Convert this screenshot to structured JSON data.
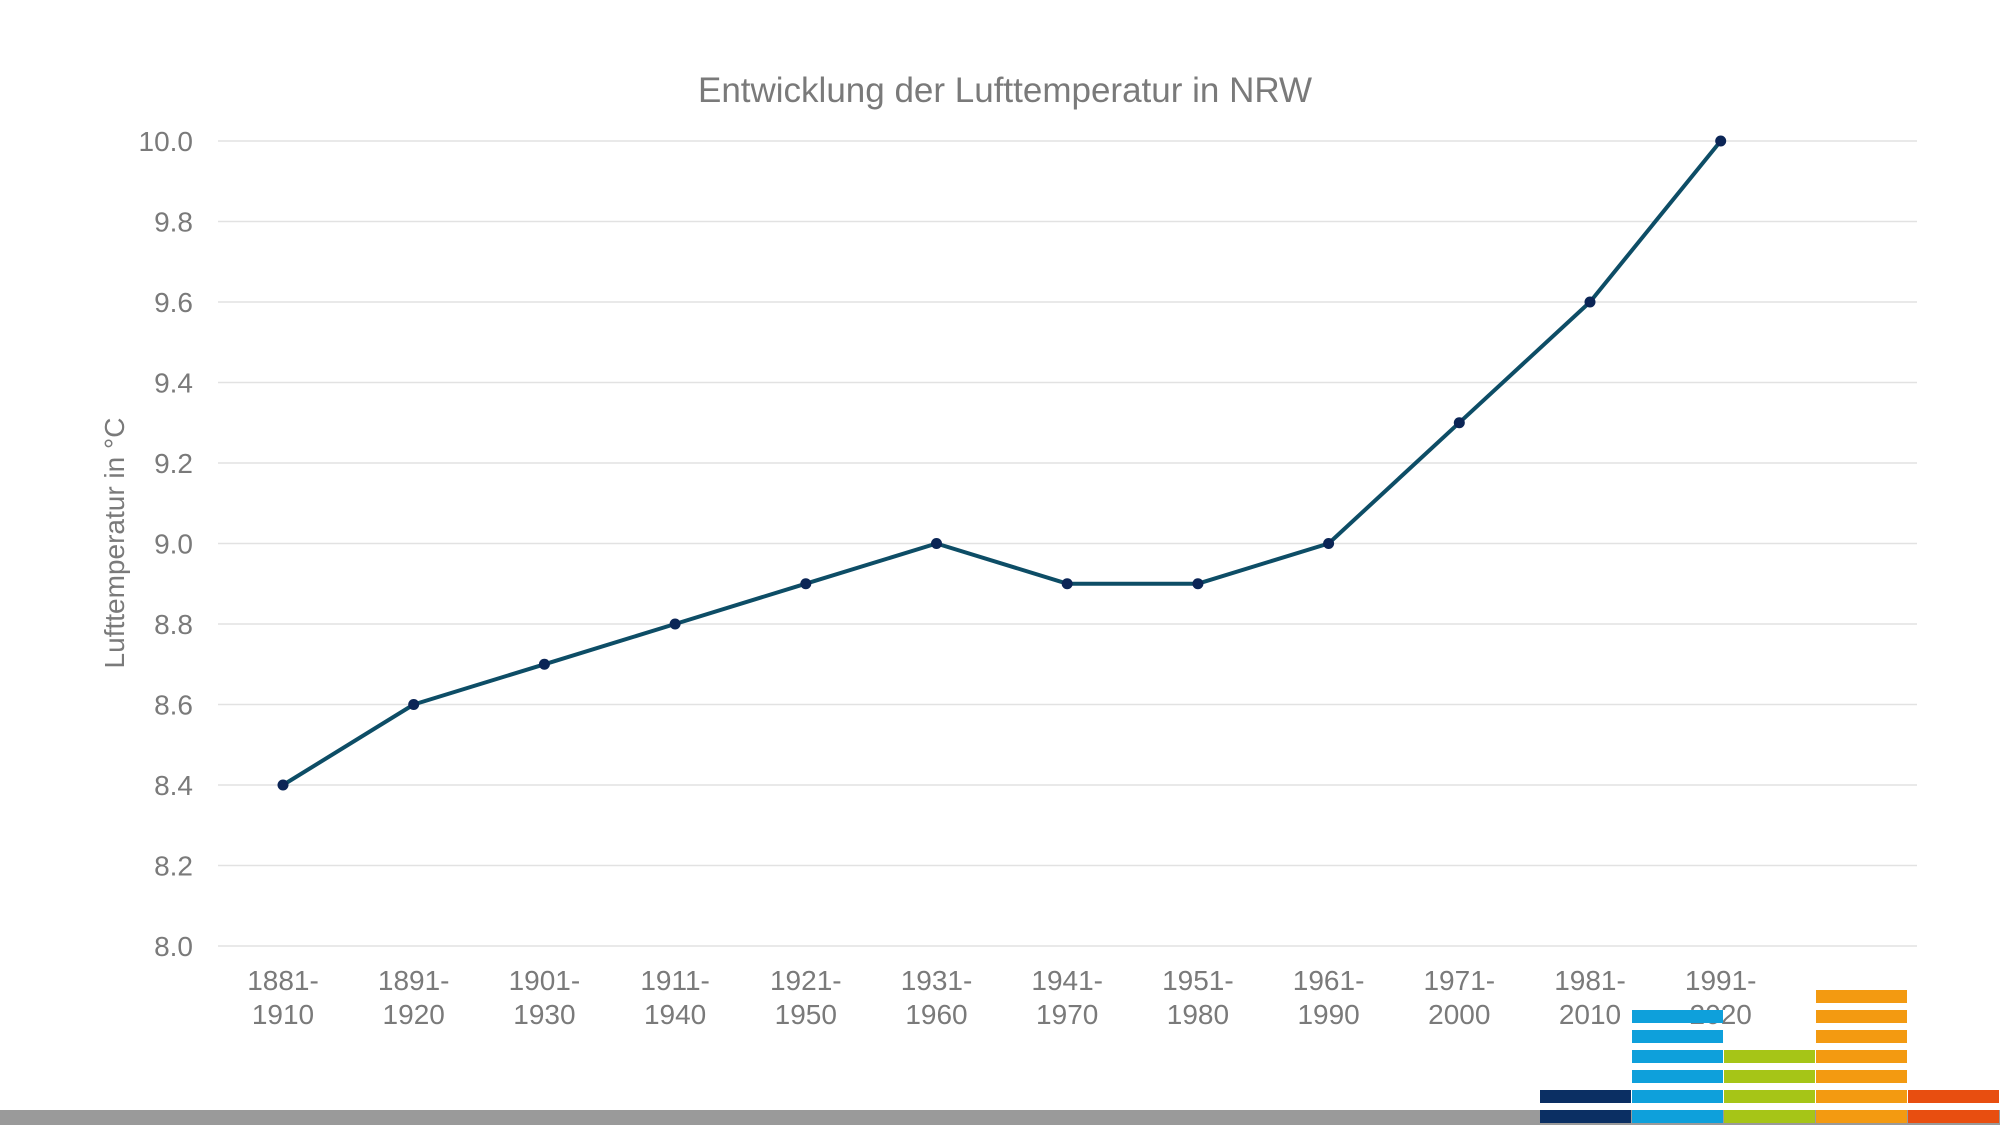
{
  "chart_data": {
    "type": "line",
    "title": "Entwicklung der Lufttemperatur in NRW",
    "xlabel": "",
    "ylabel": "Lufttemperatur in °C",
    "categories": [
      [
        "1881-",
        "1910"
      ],
      [
        "1891-",
        "1920"
      ],
      [
        "1901-",
        "1930"
      ],
      [
        "1911-",
        "1940"
      ],
      [
        "1921-",
        "1950"
      ],
      [
        "1931-",
        "1960"
      ],
      [
        "1941-",
        "1970"
      ],
      [
        "1951-",
        "1980"
      ],
      [
        "1961-",
        "1990"
      ],
      [
        "1971-",
        "2000"
      ],
      [
        "1981-",
        "2010"
      ],
      [
        "1991-",
        "2020"
      ]
    ],
    "values": [
      8.4,
      8.6,
      8.7,
      8.8,
      8.9,
      9.0,
      8.9,
      8.9,
      9.0,
      9.3,
      9.6,
      10.0
    ],
    "ylim": [
      8.0,
      10.0
    ],
    "yticks": [
      "8.0",
      "8.2",
      "8.4",
      "8.6",
      "8.8",
      "9.0",
      "9.2",
      "9.4",
      "9.6",
      "9.8",
      "10.0"
    ],
    "grid": true,
    "legend": "none",
    "colors": {
      "line": "#0d4d66",
      "marker": "#0b2556",
      "text": "#7a7a7a",
      "grid": "#e2e2e2"
    }
  },
  "footer": {
    "bar_color": "#9a9a9a",
    "logo": {
      "name": "climate-stripes-logo",
      "colors": [
        "#0b2f63",
        "#0ea0db",
        "#a6c517",
        "#f39a11",
        "#e84e10"
      ]
    }
  }
}
